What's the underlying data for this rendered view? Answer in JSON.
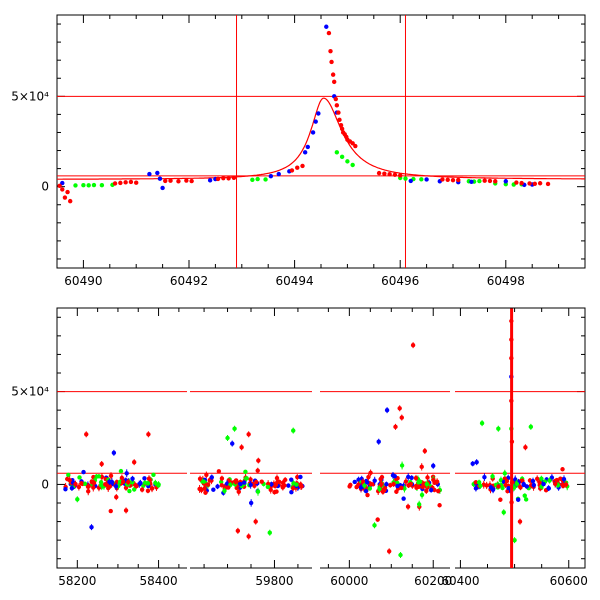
{
  "chart_data": [
    {
      "type": "scatter",
      "title": "",
      "xlabel": "",
      "ylabel": "",
      "xlim": [
        60489.5,
        60499.5
      ],
      "ylim": [
        -45000,
        95000
      ],
      "x_ticks": [
        60490,
        60492,
        60494,
        60496,
        60498
      ],
      "y_ticks": [
        {
          "value": 0,
          "label": "0"
        },
        {
          "value": 50000,
          "label": "5×10⁴"
        }
      ],
      "reference_lines": {
        "horizontal": [
          50000,
          6000
        ],
        "vertical": [
          60492.9,
          60496.1
        ]
      },
      "model_curve": {
        "peak_x": 60494.55,
        "peak_y": 49000,
        "baseline": 4000,
        "rise_halfwidth": 0.3,
        "decay_halfwidth": 0.42
      },
      "series": [
        {
          "color": "#00ff00",
          "values": [
            [
              60489.85,
              700
            ],
            [
              60490,
              800
            ],
            [
              60490.1,
              750
            ],
            [
              60490.2,
              900
            ],
            [
              60490.35,
              800
            ],
            [
              60490.55,
              1000
            ],
            [
              60493.2,
              3800
            ],
            [
              60493.3,
              4200
            ],
            [
              60493.45,
              4000
            ],
            [
              60494.8,
              19000
            ],
            [
              60494.9,
              16500
            ],
            [
              60495.0,
              14000
            ],
            [
              60495.1,
              12000
            ],
            [
              60496.0,
              4800
            ],
            [
              60496.1,
              4500
            ],
            [
              60496.25,
              4200
            ],
            [
              60496.4,
              4100
            ],
            [
              60497.3,
              3000
            ],
            [
              60497.4,
              2800
            ],
            [
              60497.5,
              3100
            ],
            [
              60497.8,
              1800
            ],
            [
              60498.0,
              1400
            ],
            [
              60498.15,
              1200
            ],
            [
              60498.3,
              1300
            ]
          ]
        },
        {
          "color": "#0000ff",
          "values": [
            [
              60489.6,
              2000
            ],
            [
              60491.25,
              7000
            ],
            [
              60491.4,
              7600
            ],
            [
              60491.45,
              4400
            ],
            [
              60491.5,
              -700
            ],
            [
              60492.4,
              3500
            ],
            [
              60492.5,
              4200
            ],
            [
              60493.55,
              5800
            ],
            [
              60493.7,
              7000
            ],
            [
              60493.9,
              8500
            ],
            [
              60494.2,
              19000
            ],
            [
              60494.25,
              22000
            ],
            [
              60494.35,
              30000
            ],
            [
              60494.4,
              36000
            ],
            [
              60494.45,
              40500
            ],
            [
              60494.6,
              88500
            ],
            [
              60494.75,
              50000
            ],
            [
              60494.8,
              41000
            ],
            [
              60496.2,
              3200
            ],
            [
              60496.5,
              4000
            ],
            [
              60496.75,
              3000
            ],
            [
              60497.1,
              2500
            ],
            [
              60497.35,
              2700
            ],
            [
              60498.0,
              3000
            ],
            [
              60498.35,
              1000
            ],
            [
              60498.5,
              1200
            ]
          ]
        },
        {
          "color": "#ff0000",
          "values": [
            [
              60489.55,
              500
            ],
            [
              60489.6,
              -1500
            ],
            [
              60489.65,
              -6000
            ],
            [
              60489.7,
              -3000
            ],
            [
              60489.75,
              -8000
            ],
            [
              60490.6,
              1800
            ],
            [
              60490.7,
              2100
            ],
            [
              60490.8,
              2400
            ],
            [
              60490.9,
              2600
            ],
            [
              60491.0,
              2200
            ],
            [
              60491.55,
              3200
            ],
            [
              60491.65,
              3300
            ],
            [
              60491.8,
              3000
            ],
            [
              60491.95,
              3400
            ],
            [
              60492.05,
              3100
            ],
            [
              60492.55,
              4300
            ],
            [
              60492.65,
              4700
            ],
            [
              60492.75,
              4600
            ],
            [
              60492.85,
              4900
            ],
            [
              60493.95,
              9000
            ],
            [
              60494.05,
              10500
            ],
            [
              60494.15,
              11500
            ],
            [
              60494.65,
              85000
            ],
            [
              60494.68,
              75000
            ],
            [
              60494.7,
              69000
            ],
            [
              60494.73,
              62000
            ],
            [
              60494.75,
              58000
            ],
            [
              60494.78,
              48500
            ],
            [
              60494.8,
              45000
            ],
            [
              60494.83,
              41000
            ],
            [
              60494.85,
              37000
            ],
            [
              60494.88,
              34000
            ],
            [
              60494.9,
              32000
            ],
            [
              60494.92,
              30000
            ],
            [
              60494.95,
              29000
            ],
            [
              60494.98,
              27500
            ],
            [
              60495.0,
              26000
            ],
            [
              60495.05,
              25000
            ],
            [
              60495.1,
              24000
            ],
            [
              60495.15,
              22500
            ],
            [
              60495.6,
              7500
            ],
            [
              60495.7,
              7200
            ],
            [
              60495.8,
              6900
            ],
            [
              60495.9,
              6600
            ],
            [
              60496.0,
              6200
            ],
            [
              60496.8,
              4000
            ],
            [
              60496.9,
              3800
            ],
            [
              60497.0,
              3600
            ],
            [
              60497.1,
              3700
            ],
            [
              60497.6,
              3300
            ],
            [
              60497.7,
              3200
            ],
            [
              60497.8,
              3000
            ],
            [
              60498.2,
              2300
            ],
            [
              60498.3,
              2000
            ],
            [
              60498.45,
              1800
            ],
            [
              60498.55,
              1600
            ],
            [
              60498.65,
              1900
            ],
            [
              60498.8,
              1500
            ]
          ]
        }
      ]
    },
    {
      "type": "scatter",
      "title": "",
      "xlabel": "",
      "ylabel": "",
      "ylim": [
        -45000,
        95000
      ],
      "x_segments": [
        [
          58150,
          58470
        ],
        [
          59620,
          59880
        ],
        [
          59930,
          60240
        ],
        [
          60390,
          60630
        ]
      ],
      "x_ticks": [
        58200,
        58400,
        59800,
        60000,
        60200,
        60400,
        60600
      ],
      "y_ticks": [
        {
          "value": 0,
          "label": "0"
        },
        {
          "value": 50000,
          "label": "5×10⁴"
        }
      ],
      "reference_lines": {
        "horizontal": [
          50000,
          6000
        ],
        "vertical": [
          60494.5
        ]
      },
      "season_clusters": [
        {
          "x_range": [
            58170,
            58400
          ],
          "scatter": 3000,
          "n": 120
        },
        {
          "x_range": [
            59640,
            59860
          ],
          "scatter": 3500,
          "n": 120
        },
        {
          "x_range": [
            60000,
            60220
          ],
          "scatter": 3500,
          "n": 120
        },
        {
          "x_range": [
            60420,
            60600
          ],
          "scatter": 3000,
          "n": 110
        }
      ],
      "outliers": [
        {
          "x": 58222,
          "y": 27000,
          "color": "#ff0000"
        },
        {
          "x": 58375,
          "y": 27000,
          "color": "#ff0000"
        },
        {
          "x": 58290,
          "y": 17000,
          "color": "#0000ff"
        },
        {
          "x": 58260,
          "y": 11000,
          "color": "#ff0000"
        },
        {
          "x": 58235,
          "y": -23000,
          "color": "#0000ff"
        },
        {
          "x": 58320,
          "y": -14000,
          "color": "#ff0000"
        },
        {
          "x": 58200,
          "y": -8000,
          "color": "#00ff00"
        },
        {
          "x": 58340,
          "y": 12000,
          "color": "#ff0000"
        },
        {
          "x": 59700,
          "y": 25000,
          "color": "#00ff00"
        },
        {
          "x": 59715,
          "y": 30000,
          "color": "#00ff00"
        },
        {
          "x": 59745,
          "y": 27000,
          "color": "#ff0000"
        },
        {
          "x": 59840,
          "y": 29000,
          "color": "#00ff00"
        },
        {
          "x": 59730,
          "y": 20000,
          "color": "#ff0000"
        },
        {
          "x": 59760,
          "y": -20000,
          "color": "#ff0000"
        },
        {
          "x": 59722,
          "y": -25000,
          "color": "#ff0000"
        },
        {
          "x": 59745,
          "y": -28000,
          "color": "#ff0000"
        },
        {
          "x": 59790,
          "y": -26000,
          "color": "#00ff00"
        },
        {
          "x": 59710,
          "y": 22000,
          "color": "#0000ff"
        },
        {
          "x": 60152,
          "y": 75000,
          "color": "#ff0000"
        },
        {
          "x": 60090,
          "y": 40000,
          "color": "#0000ff"
        },
        {
          "x": 60120,
          "y": 41000,
          "color": "#ff0000"
        },
        {
          "x": 60125,
          "y": 36000,
          "color": "#ff0000"
        },
        {
          "x": 60110,
          "y": 31000,
          "color": "#ff0000"
        },
        {
          "x": 60070,
          "y": 23000,
          "color": "#0000ff"
        },
        {
          "x": 60095,
          "y": -36000,
          "color": "#ff0000"
        },
        {
          "x": 60122,
          "y": -38000,
          "color": "#00ff00"
        },
        {
          "x": 60060,
          "y": -22000,
          "color": "#00ff00"
        },
        {
          "x": 60180,
          "y": 18000,
          "color": "#ff0000"
        },
        {
          "x": 60140,
          "y": -12000,
          "color": "#ff0000"
        },
        {
          "x": 60200,
          "y": 10000,
          "color": "#0000ff"
        },
        {
          "x": 60440,
          "y": 33000,
          "color": "#00ff00"
        },
        {
          "x": 60470,
          "y": 30000,
          "color": "#00ff00"
        },
        {
          "x": 60530,
          "y": 31000,
          "color": "#00ff00"
        },
        {
          "x": 60480,
          "y": -15000,
          "color": "#00ff00"
        },
        {
          "x": 60500,
          "y": -30000,
          "color": "#00ff00"
        },
        {
          "x": 60510,
          "y": -20000,
          "color": "#ff0000"
        },
        {
          "x": 60520,
          "y": 20000,
          "color": "#ff0000"
        },
        {
          "x": 60430,
          "y": 12000,
          "color": "#0000ff"
        },
        {
          "x": 60494,
          "y": 88000,
          "color": "#ff0000"
        },
        {
          "x": 60494,
          "y": 78000,
          "color": "#ff0000"
        },
        {
          "x": 60494,
          "y": 68000,
          "color": "#ff0000"
        },
        {
          "x": 60494,
          "y": 58000,
          "color": "#0000ff"
        },
        {
          "x": 60494,
          "y": 45000,
          "color": "#ff0000"
        },
        {
          "x": 60494,
          "y": 30000,
          "color": "#00ff00"
        },
        {
          "x": 60495,
          "y": 23000,
          "color": "#ff0000"
        }
      ]
    }
  ]
}
